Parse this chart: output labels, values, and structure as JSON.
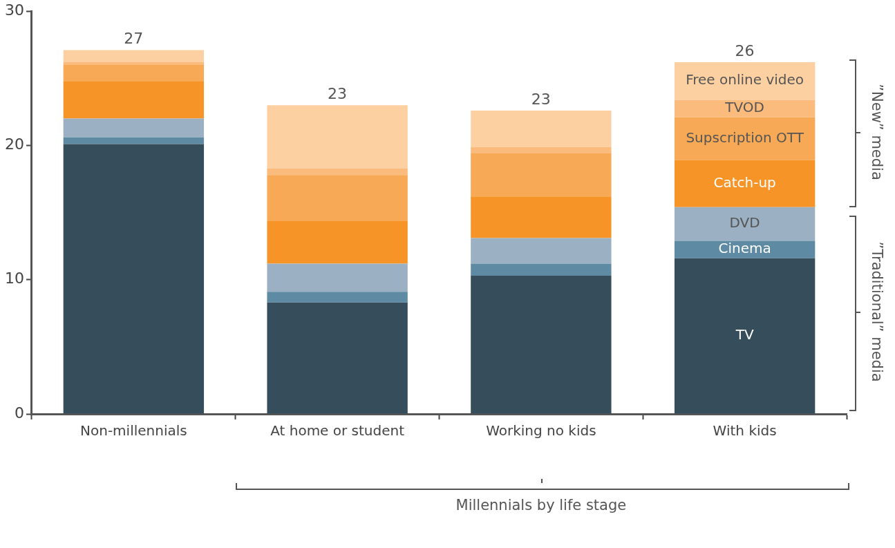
{
  "chart_data": {
    "type": "bar",
    "stacked": true,
    "categories": [
      "Non-millennials",
      "At home or student",
      "Working no kids",
      "With kids"
    ],
    "series": [
      {
        "name": "TV",
        "color": "#364e5c",
        "values": [
          20.1,
          8.3,
          10.3,
          11.6
        ]
      },
      {
        "name": "Cinema",
        "color": "#5e8aa4",
        "values": [
          0.5,
          0.8,
          0.9,
          1.3
        ]
      },
      {
        "name": "DVD",
        "color": "#9bb0c3",
        "values": [
          1.4,
          2.1,
          1.9,
          2.5
        ]
      },
      {
        "name": "Catch-up",
        "color": "#f69428",
        "values": [
          2.8,
          3.2,
          3.1,
          3.5
        ]
      },
      {
        "name": "Supscription OTT",
        "color": "#f8a955",
        "values": [
          1.2,
          3.4,
          3.2,
          3.2
        ]
      },
      {
        "name": "TVOD",
        "color": "#fbbb7c",
        "values": [
          0.2,
          0.5,
          0.5,
          1.3
        ]
      },
      {
        "name": "Free online video",
        "color": "#fdd0a2",
        "values": [
          0.9,
          4.7,
          2.7,
          2.8
        ]
      }
    ],
    "totals": [
      "27",
      "23",
      "23",
      "26"
    ],
    "ylim": [
      0,
      30
    ],
    "yticks": [
      0,
      10,
      20,
      30
    ],
    "grid": false,
    "annotations": [
      "Millennials by life stage",
      "”New” media",
      "”Traditional” media"
    ]
  }
}
